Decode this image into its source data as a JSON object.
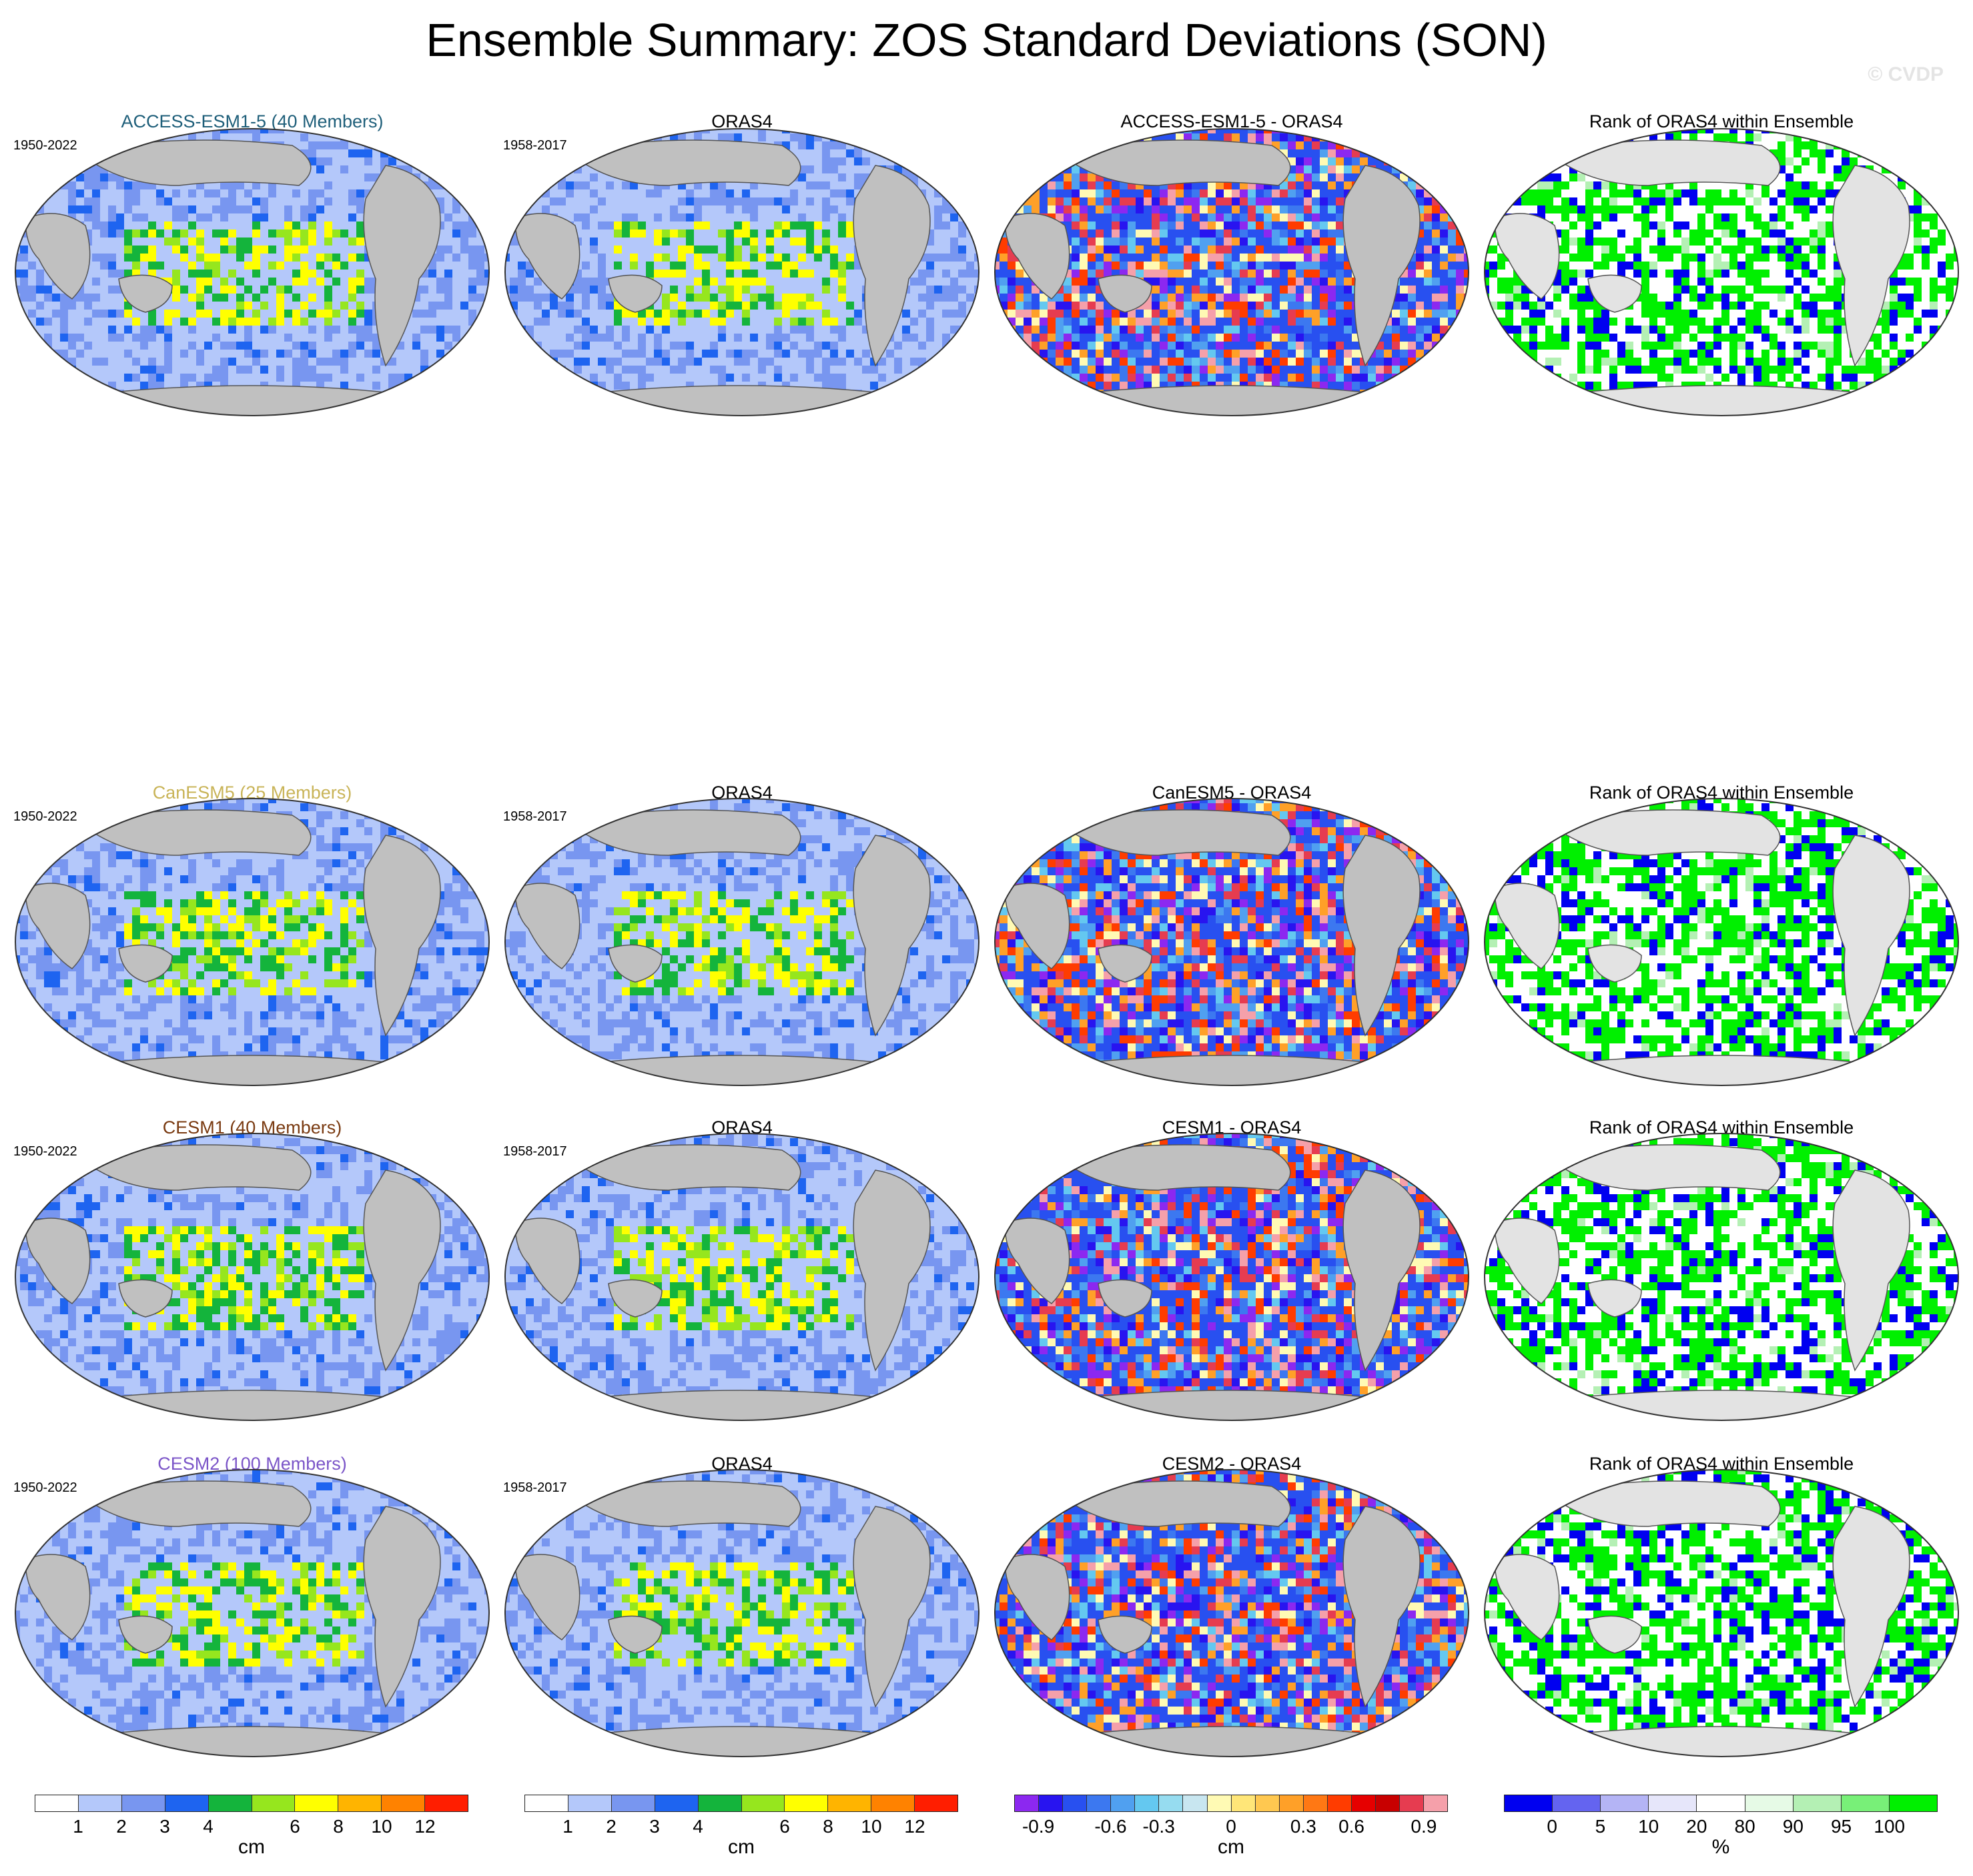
{
  "title": "Ensemble Summary: ZOS Standard Deviations (SON)",
  "watermark": "© CVDP",
  "colors": {
    "ocean_gray": "#c0c0c0",
    "rank_gray": "#e3e3e3",
    "access_title": "#1f5f7a",
    "canesm_title": "#c9b458",
    "cesm1_title": "#7a3b12",
    "cesm2_title": "#7b55c8"
  },
  "rows": [
    {
      "model": "ACCESS-ESM1-5 (40 Members)",
      "model_color": "#1f5f7a",
      "model_period": "1950-2022",
      "obs": "ORAS4",
      "obs_period": "1958-2017",
      "diff": "ACCESS-ESM1-5 - ORAS4",
      "rank": "Rank of ORAS4 within Ensemble"
    },
    {
      "model": "CanESM5 (25 Members)",
      "model_color": "#c9b458",
      "model_period": "1950-2022",
      "obs": "ORAS4",
      "obs_period": "1958-2017",
      "diff": "CanESM5 - ORAS4",
      "rank": "Rank of ORAS4 within Ensemble"
    },
    {
      "model": "CESM1 (40 Members)",
      "model_color": "#7a3b12",
      "model_period": "1950-2022",
      "obs": "ORAS4",
      "obs_period": "1958-2017",
      "diff": "CESM1 - ORAS4",
      "rank": "Rank of ORAS4 within Ensemble"
    },
    {
      "model": "CESM2 (100 Members)",
      "model_color": "#7b55c8",
      "model_period": "1950-2022",
      "obs": "ORAS4",
      "obs_period": "1958-2017",
      "diff": "CESM2 - ORAS4",
      "rank": "Rank of ORAS4 within Ensemble"
    }
  ],
  "colorbars": [
    {
      "id": "sd_model",
      "unit": "cm",
      "colors": [
        "#ffffff",
        "#b4c8fa",
        "#7896f0",
        "#1e64f0",
        "#14b43c",
        "#96e61e",
        "#ffff00",
        "#ffb400",
        "#ff8200",
        "#ff1e00"
      ],
      "tick_labels": [
        "1",
        "2",
        "3",
        "4",
        "6",
        "8",
        "10",
        "12"
      ]
    },
    {
      "id": "sd_obs",
      "unit": "cm",
      "colors": [
        "#ffffff",
        "#b4c8fa",
        "#7896f0",
        "#1e64f0",
        "#14b43c",
        "#96e61e",
        "#ffff00",
        "#ffb400",
        "#ff8200",
        "#ff1e00"
      ],
      "tick_labels": [
        "1",
        "2",
        "3",
        "4",
        "6",
        "8",
        "10",
        "12"
      ]
    },
    {
      "id": "diff",
      "unit": "cm",
      "colors": [
        "#8c28f0",
        "#2814f0",
        "#2850f0",
        "#3c78f0",
        "#50a0f0",
        "#64c8f0",
        "#96dcf0",
        "#c8e6f0",
        "#fffab4",
        "#ffe678",
        "#ffc850",
        "#ffa028",
        "#ff7814",
        "#ff3c00",
        "#e60000",
        "#c80000",
        "#e63c50",
        "#f5a0aa"
      ],
      "tick_labels": [
        "-0.9",
        "-0.6",
        "-0.3",
        "0",
        "0.3",
        "0.6",
        "0.9"
      ]
    },
    {
      "id": "rank",
      "unit": "%",
      "colors": [
        "#0000f0",
        "#6464f0",
        "#b4b4f5",
        "#e6e6fa",
        "#ffffff",
        "#e6fae6",
        "#b4f0b4",
        "#78f078",
        "#00f000"
      ],
      "tick_labels": [
        "0",
        "5",
        "10",
        "20",
        "80",
        "90",
        "95",
        "100"
      ]
    }
  ]
}
